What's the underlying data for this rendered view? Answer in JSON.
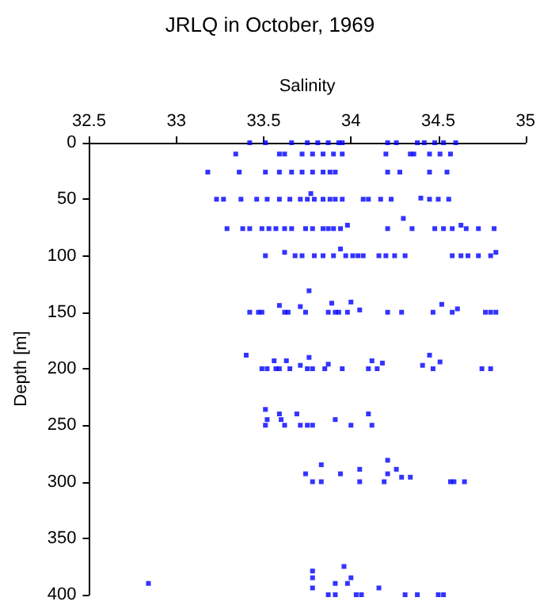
{
  "chart_data": {
    "type": "scatter",
    "title": "JRLQ in October, 1969",
    "xlabel": "Salinity",
    "ylabel": "Depth [m]",
    "xlim": [
      32.5,
      35
    ],
    "xticks": [
      32.5,
      33,
      33.5,
      34,
      34.5,
      35
    ],
    "ylim": [
      400,
      0
    ],
    "yticks": [
      0,
      50,
      100,
      150,
      200,
      250,
      300,
      350,
      400
    ],
    "grid": false,
    "marker": "square",
    "series": [
      {
        "color": "#0000ff",
        "x": [
          33.42,
          33.51,
          33.66,
          33.75,
          33.81,
          33.87,
          33.93,
          33.95,
          34.21,
          34.26,
          34.38,
          34.42,
          34.48,
          34.53,
          34.6,
          33.34,
          33.59,
          33.62,
          33.72,
          33.78,
          33.84,
          33.9,
          33.95,
          34.2,
          34.34,
          34.36,
          34.45,
          34.51,
          34.57,
          33.18,
          33.36,
          33.51,
          33.59,
          33.66,
          33.72,
          33.78,
          33.84,
          33.88,
          33.91,
          34.21,
          34.28,
          34.45,
          34.55,
          33.23,
          33.27,
          33.37,
          33.46,
          33.52,
          33.59,
          33.65,
          33.71,
          33.75,
          33.79,
          33.84,
          33.88,
          33.91,
          33.95,
          34.07,
          34.1,
          34.17,
          34.23,
          34.4,
          34.45,
          34.5,
          34.56,
          33.77,
          33.29,
          33.38,
          33.42,
          33.49,
          33.53,
          33.57,
          33.62,
          33.66,
          33.74,
          33.78,
          33.84,
          33.87,
          33.9,
          33.94,
          33.98,
          34.21,
          34.3,
          34.35,
          34.48,
          34.53,
          34.58,
          34.63,
          34.66,
          34.73,
          34.82,
          33.51,
          33.62,
          33.68,
          33.72,
          33.79,
          33.84,
          33.9,
          33.94,
          33.97,
          34.01,
          34.04,
          34.07,
          34.16,
          34.2,
          34.25,
          34.31,
          34.58,
          34.63,
          34.67,
          34.73,
          34.8,
          34.83,
          33.76,
          33.42,
          33.47,
          33.49,
          33.59,
          33.62,
          33.64,
          33.71,
          33.74,
          33.87,
          33.89,
          33.91,
          33.93,
          33.98,
          34.0,
          34.05,
          34.21,
          34.29,
          34.47,
          34.52,
          34.58,
          34.61,
          34.77,
          34.8,
          34.83,
          33.4,
          33.49,
          33.52,
          33.56,
          33.57,
          33.59,
          33.63,
          33.65,
          33.71,
          33.75,
          33.76,
          33.78,
          33.85,
          33.87,
          33.95,
          34.1,
          34.12,
          34.15,
          34.18,
          34.41,
          34.45,
          34.47,
          34.51,
          34.75,
          34.8,
          33.51,
          33.51,
          33.52,
          33.59,
          33.6,
          33.62,
          33.69,
          33.71,
          33.75,
          33.78,
          33.91,
          34.0,
          34.1,
          34.12,
          33.74,
          33.78,
          33.83,
          33.83,
          33.94,
          34.05,
          34.05,
          34.19,
          34.21,
          34.21,
          34.26,
          34.29,
          34.34,
          34.57,
          34.59,
          34.65,
          32.84,
          33.78,
          33.78,
          33.78,
          33.87,
          33.91,
          33.91,
          33.96,
          33.98,
          34.0,
          34.03,
          34.06,
          34.16,
          34.31,
          34.38,
          34.5,
          34.53
        ],
        "values": [
          0,
          0,
          0,
          0,
          0,
          0,
          0,
          0,
          0,
          0,
          0,
          0,
          0,
          0,
          0,
          10,
          10,
          10,
          10,
          10,
          10,
          10,
          10,
          10,
          10,
          10,
          10,
          10,
          10,
          26,
          26,
          26,
          26,
          26,
          26,
          26,
          26,
          26,
          26,
          26,
          26,
          26,
          26,
          50,
          50,
          50,
          50,
          50,
          50,
          50,
          50,
          50,
          50,
          50,
          50,
          50,
          50,
          50,
          50,
          50,
          50,
          49,
          50,
          50,
          50,
          45,
          76,
          76,
          76,
          76,
          76,
          76,
          76,
          76,
          76,
          76,
          76,
          76,
          76,
          76,
          73,
          76,
          67,
          76,
          76,
          76,
          76,
          73,
          76,
          76,
          76,
          100,
          97,
          100,
          100,
          100,
          100,
          100,
          94,
          100,
          100,
          100,
          100,
          100,
          100,
          100,
          100,
          100,
          100,
          100,
          100,
          100,
          97,
          131,
          150,
          150,
          150,
          144,
          150,
          150,
          145,
          150,
          150,
          142,
          150,
          150,
          150,
          141,
          148,
          150,
          150,
          150,
          143,
          150,
          147,
          150,
          150,
          150,
          188,
          200,
          200,
          193,
          200,
          200,
          193,
          200,
          197,
          200,
          190,
          200,
          200,
          196,
          200,
          200,
          193,
          200,
          195,
          197,
          188,
          200,
          194,
          200,
          200,
          236,
          250,
          245,
          240,
          245,
          250,
          240,
          250,
          250,
          250,
          245,
          250,
          240,
          250,
          293,
          300,
          300,
          285,
          293,
          289,
          300,
          300,
          293,
          281,
          289,
          296,
          296,
          300,
          300,
          300,
          390,
          379,
          385,
          394,
          400,
          400,
          390,
          375,
          390,
          385,
          400,
          400,
          394,
          400,
          400,
          400,
          400
        ]
      }
    ]
  }
}
